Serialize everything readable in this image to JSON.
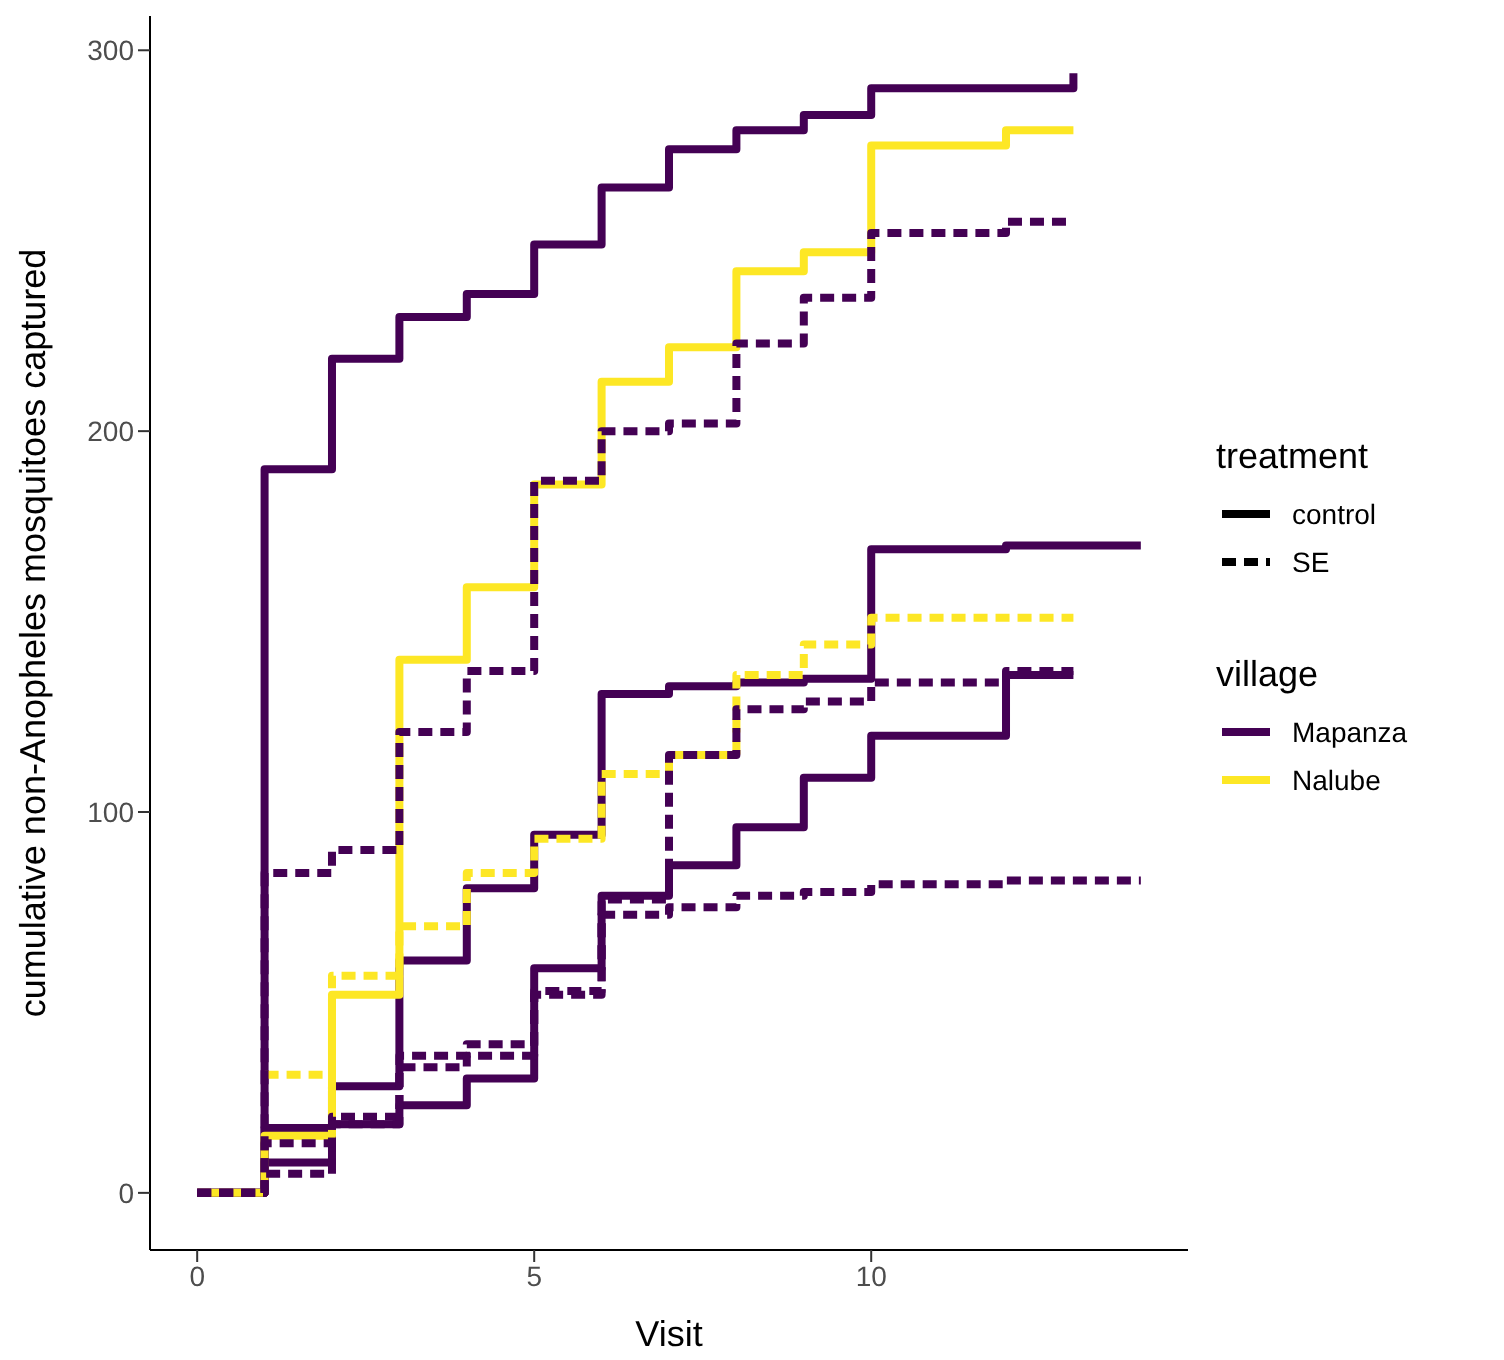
{
  "chart_data": {
    "type": "step",
    "xlabel": "Visit",
    "ylabel": "cumulative non-Anopheles mosquitoes captured",
    "legend_title": "treatment",
    "annotations": [
      "control",
      "SE",
      "village",
      "Mapanza",
      "Nalube"
    ],
    "xlim": [
      -0.7,
      14.7
    ],
    "ylim": [
      -15,
      309
    ],
    "xticks": [
      0,
      5,
      10
    ],
    "yticks": [
      0,
      100,
      200,
      300
    ],
    "series": [
      {
        "color": "#440154",
        "line_style": "solid",
        "x": [
          0,
          1,
          2,
          3,
          4,
          5,
          6,
          7,
          8,
          9,
          10,
          11,
          12,
          13
        ],
        "values": [
          0,
          190,
          219,
          230,
          236,
          249,
          264,
          274,
          279,
          283,
          290,
          290,
          290,
          294
        ]
      },
      {
        "color": "#440154",
        "line_style": "solid",
        "x": [
          0,
          1,
          2,
          3,
          4,
          5,
          6,
          7,
          8,
          9,
          10,
          11,
          12,
          13,
          14
        ],
        "values": [
          0,
          17,
          28,
          61,
          80,
          94,
          131,
          133,
          134,
          135,
          169,
          169,
          170,
          170,
          170
        ]
      },
      {
        "color": "#440154",
        "line_style": "solid",
        "x": [
          0,
          1,
          2,
          3,
          4,
          5,
          6,
          7,
          8,
          9,
          10,
          11,
          12,
          13
        ],
        "values": [
          0,
          8,
          18,
          23,
          30,
          59,
          78,
          86,
          96,
          109,
          120,
          120,
          136,
          136
        ]
      },
      {
        "color": "#fde725",
        "line_style": "solid",
        "x": [
          0,
          1,
          2,
          3,
          4,
          5,
          6,
          7,
          8,
          9,
          10,
          11,
          12,
          13
        ],
        "values": [
          0,
          15,
          52,
          140,
          159,
          186,
          213,
          222,
          242,
          247,
          275,
          275,
          279,
          279
        ]
      },
      {
        "color": "#fde725",
        "line_style": "dashed",
        "x": [
          1,
          2,
          3,
          4,
          5,
          6,
          7,
          8,
          9,
          10,
          11,
          12,
          13
        ],
        "values": [
          31,
          57,
          70,
          84,
          93,
          110,
          115,
          136,
          144,
          151,
          151,
          151,
          151
        ]
      },
      {
        "color": "#440154",
        "line_style": "dashed",
        "x": [
          0,
          1,
          2,
          3,
          4,
          5,
          6,
          7,
          8,
          9,
          10,
          11,
          12,
          13
        ],
        "values": [
          0,
          84,
          90,
          121,
          137,
          187,
          200,
          202,
          223,
          235,
          252,
          252,
          255,
          255
        ]
      },
      {
        "color": "#440154",
        "line_style": "dashed",
        "x": [
          0,
          1,
          2,
          3,
          4,
          5,
          6,
          7,
          8,
          9,
          10,
          11,
          12,
          13
        ],
        "values": [
          0,
          5,
          20,
          36,
          39,
          53,
          77,
          115,
          127,
          129,
          134,
          134,
          137,
          137
        ]
      },
      {
        "color": "#440154",
        "line_style": "dashed",
        "x": [
          0,
          1,
          2,
          3,
          4,
          5,
          6,
          7,
          8,
          9,
          10,
          11,
          12,
          13,
          14
        ],
        "values": [
          0,
          13,
          18,
          33,
          36,
          52,
          73,
          75,
          78,
          79,
          81,
          81,
          82,
          82,
          82
        ]
      }
    ]
  }
}
